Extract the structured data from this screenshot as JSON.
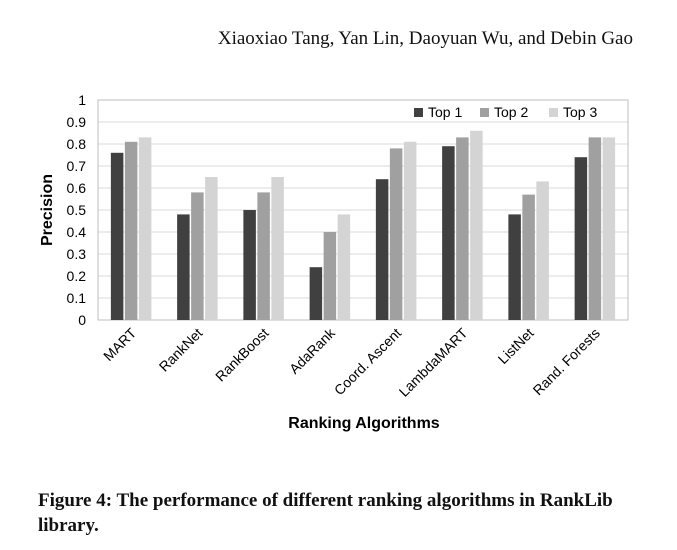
{
  "header": {
    "authors": "Xiaoxiao Tang, Yan Lin, Daoyuan Wu, and Debin Gao"
  },
  "caption": "Figure 4: The performance of different ranking algorithms in RankLib library.",
  "chart_data": {
    "type": "bar",
    "xlabel": "Ranking Algorithms",
    "ylabel": "Precision",
    "ylim": [
      0,
      1
    ],
    "yticks": [
      "0",
      "0.1",
      "0.2",
      "0.3",
      "0.4",
      "0.5",
      "0.6",
      "0.7",
      "0.8",
      "0.9",
      "1"
    ],
    "grid": true,
    "legend": "top-right",
    "categories": [
      "MART",
      "RankNet",
      "RankBoost",
      "AdaRank",
      "Coord. Ascent",
      "LambdaMART",
      "ListNet",
      "Rand. Forests"
    ],
    "series": [
      {
        "name": "Top 1",
        "color": "#404040",
        "values": [
          0.76,
          0.48,
          0.5,
          0.24,
          0.64,
          0.79,
          0.48,
          0.74
        ]
      },
      {
        "name": "Top 2",
        "color": "#a0a0a0",
        "values": [
          0.81,
          0.58,
          0.58,
          0.4,
          0.78,
          0.83,
          0.57,
          0.83
        ]
      },
      {
        "name": "Top 3",
        "color": "#d4d4d4",
        "values": [
          0.83,
          0.65,
          0.65,
          0.48,
          0.81,
          0.86,
          0.63,
          0.83
        ]
      }
    ]
  }
}
